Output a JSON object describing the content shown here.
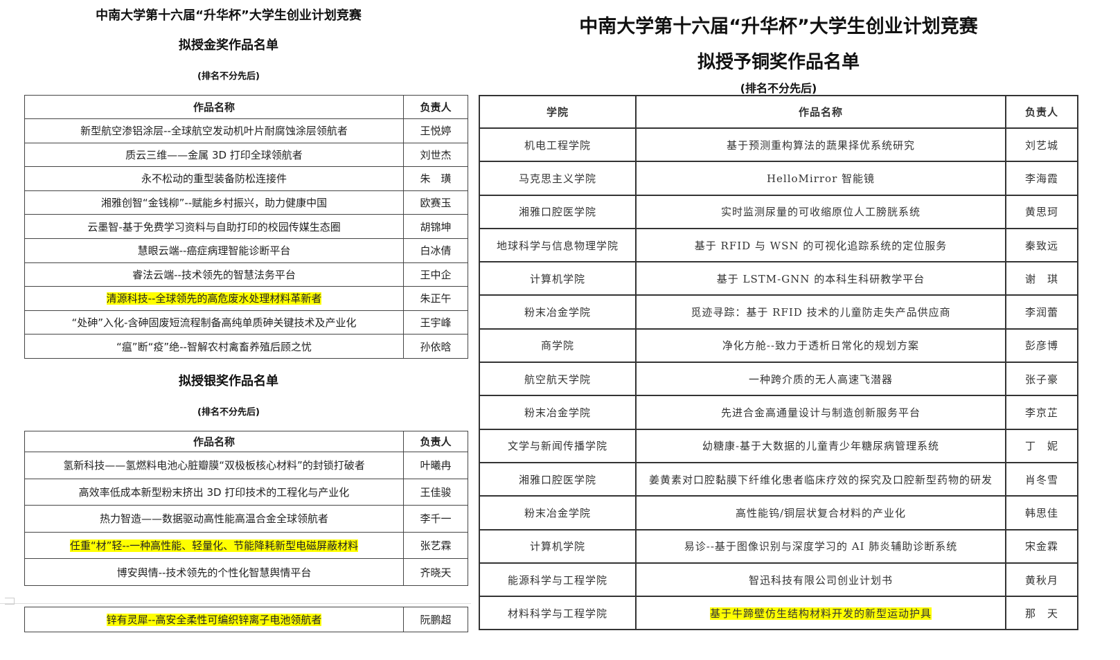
{
  "left": {
    "title": "中南大学第十六届“升华杯”大学生创业计划竞赛",
    "gold": {
      "title": "拟授金奖作品名单",
      "note": "(排名不分先后)",
      "headers": [
        "作品名称",
        "负责人"
      ],
      "rows": [
        {
          "name": "新型航空渗铝涂层--全球航空发动机叶片耐腐蚀涂层领航者",
          "lead": "王悦婷"
        },
        {
          "name": "质云三维——金属 3D 打印全球领航者",
          "lead": "刘世杰"
        },
        {
          "name": "永不松动的重型装备防松连接件",
          "lead": "朱　璜"
        },
        {
          "name": "湘雅创智“金钱柳”--赋能乡村振兴，助力健康中国",
          "lead": "欧赛玉"
        },
        {
          "name": "云墨智-基于免费学习资料与自助打印的校园传媒生态圈",
          "lead": "胡锦坤"
        },
        {
          "name": "慧眼云端--癌症病理智能诊断平台",
          "lead": "白冰倩"
        },
        {
          "name": "睿法云端--技术领先的智慧法务平台",
          "lead": "王中企"
        },
        {
          "name": "清源科技--全球领先的高危废水处理材料革新者",
          "lead": "朱正午",
          "highlight": true
        },
        {
          "name": "“处砷”入化-含砷固废短流程制备高纯单质砷关键技术及产业化",
          "lead": "王宇峰"
        },
        {
          "name": "“瘟”断“疫”绝--智解农村禽畜养殖后顾之忧",
          "lead": "孙依晗"
        }
      ]
    },
    "silver": {
      "title": "拟授银奖作品名单",
      "note": "(排名不分先后)",
      "headers": [
        "作品名称",
        "负责人"
      ],
      "rows": [
        {
          "name": "氢新科技——氢燃料电池心脏瓣膜“双极板核心材料”的封锁打破者",
          "lead": "叶曦冉"
        },
        {
          "name": "高效率低成本新型粉末挤出 3D 打印技术的工程化与产业化",
          "lead": "王佳骏"
        },
        {
          "name": "热力智造——数据驱动高性能高温合金全球领航者",
          "lead": "李千一"
        },
        {
          "name": "任重“材”轻--一种高性能、轻量化、节能降耗新型电磁屏蔽材料",
          "lead": "张艺霖",
          "highlight": true
        },
        {
          "name": "博安舆情--技术领先的个性化智慧舆情平台",
          "lead": "齐晓天"
        }
      ]
    },
    "extra": {
      "name": "锌有灵犀--高安全柔性可编织锌离子电池领航者",
      "lead": "阮鹏超",
      "highlight": true
    }
  },
  "right": {
    "title": "中南大学第十六届“升华杯”大学生创业计划竞赛",
    "subtitle": "拟授予铜奖作品名单",
    "note": "(排名不分先后)",
    "headers": [
      "学院",
      "作品名称",
      "负责人"
    ],
    "rows": [
      {
        "college": "机电工程学院",
        "name": "基于预测重构算法的蔬果择优系统研究",
        "lead": "刘艺城"
      },
      {
        "college": "马克思主义学院",
        "name": "HelloMirror 智能镜",
        "lead": "李海霞"
      },
      {
        "college": "湘雅口腔医学院",
        "name": "实时监测尿量的可收缩原位人工膀胱系统",
        "lead": "黄思珂"
      },
      {
        "college": "地球科学与信息物理学院",
        "name": "基于 RFID 与 WSN 的可视化追踪系统的定位服务",
        "lead": "秦致远"
      },
      {
        "college": "计算机学院",
        "name": "基于 LSTM-GNN 的本科生科研教学平台",
        "lead": "谢　琪"
      },
      {
        "college": "粉末冶金学院",
        "name": "觅迹寻踪：基于 RFID 技术的儿童防走失产品供应商",
        "lead": "李润蕾"
      },
      {
        "college": "商学院",
        "name": "净化方舱--致力于透析日常化的规划方案",
        "lead": "彭彦博"
      },
      {
        "college": "航空航天学院",
        "name": "一种跨介质的无人高速飞潜器",
        "lead": "张子豪"
      },
      {
        "college": "粉末冶金学院",
        "name": "先进合金高通量设计与制造创新服务平台",
        "lead": "李京芷"
      },
      {
        "college": "文学与新闻传播学院",
        "name": "幼糖康-基于大数据的儿童青少年糖尿病管理系统",
        "lead": "丁　妮"
      },
      {
        "college": "湘雅口腔医学院",
        "name": "姜黄素对口腔黏膜下纤维化患者临床疗效的探究及口腔新型药物的研发",
        "lead": "肖冬雪"
      },
      {
        "college": "粉末冶金学院",
        "name": "高性能钨/铜层状复合材料的产业化",
        "lead": "韩思佳"
      },
      {
        "college": "计算机学院",
        "name": "易诊--基于图像识别与深度学习的 AI 肺炎辅助诊断系统",
        "lead": "宋金霖"
      },
      {
        "college": "能源科学与工程学院",
        "name": "智迅科技有限公司创业计划书",
        "lead": "黄秋月"
      },
      {
        "college": "材料科学与工程学院",
        "name": "基于牛蹄壁仿生结构材料开发的新型运动护具",
        "lead": "那　天",
        "highlight": true
      }
    ]
  },
  "colors": {
    "highlight": "#ffff00"
  }
}
